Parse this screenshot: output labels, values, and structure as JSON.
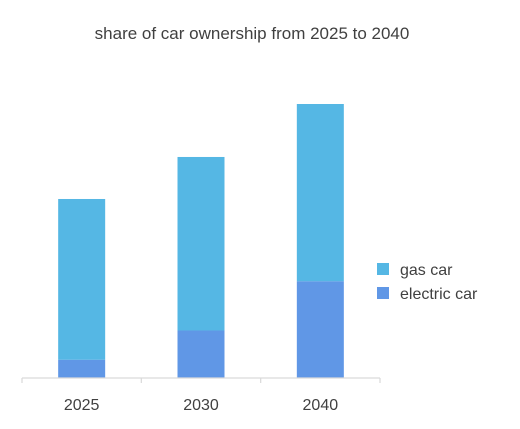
{
  "chart_data": {
    "type": "bar",
    "stacked": true,
    "title": "share of car ownership from 2025 to 2040",
    "xlabel": "",
    "ylabel": "",
    "categories": [
      "2025",
      "2030",
      "2040"
    ],
    "series": [
      {
        "name": "electric car",
        "values": [
          10,
          26,
          53
        ],
        "color": "#6097E6"
      },
      {
        "name": "gas car",
        "values": [
          88,
          95,
          97
        ],
        "color": "#55B7E4"
      }
    ],
    "ylim": [
      0,
      150
    ],
    "grid": false,
    "y_axis_visible": false,
    "legend": {
      "position": "right",
      "items": [
        {
          "label": "gas car",
          "color": "#55B7E4"
        },
        {
          "label": "electric car",
          "color": "#6097E6"
        }
      ]
    }
  }
}
